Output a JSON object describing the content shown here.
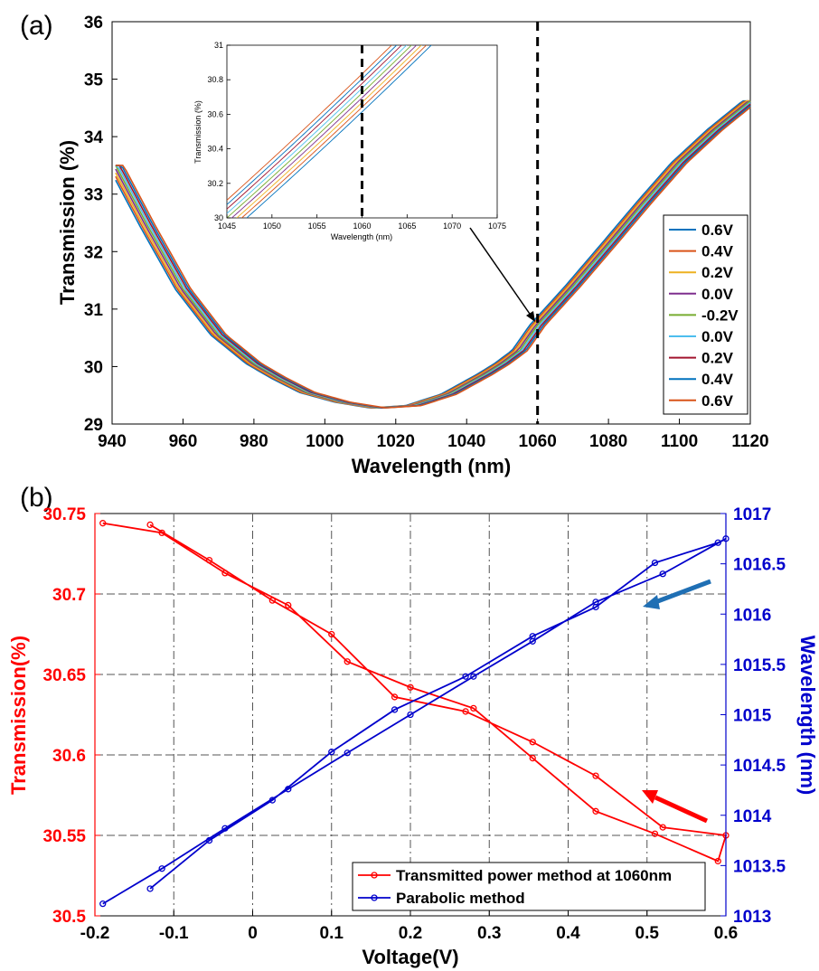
{
  "panels": {
    "a_label": "(a)",
    "b_label": "(b)"
  },
  "chart_data": [
    {
      "type": "line",
      "panel": "(a)",
      "xlabel": "Wavelength (nm)",
      "ylabel": "Transmission (%)",
      "xlim": [
        940,
        1120
      ],
      "ylim": [
        29,
        36
      ],
      "xticks": [
        940,
        960,
        980,
        1000,
        1020,
        1040,
        1060,
        1080,
        1100,
        1120
      ],
      "yticks": [
        29,
        30,
        31,
        32,
        33,
        34,
        35,
        36
      ],
      "marker_line_x": 1060,
      "curve_points": [
        [
          941,
          33.5
        ],
        [
          950,
          32.45
        ],
        [
          960,
          31.35
        ],
        [
          970,
          30.55
        ],
        [
          980,
          30.05
        ],
        [
          987,
          29.8
        ],
        [
          995,
          29.55
        ],
        [
          1005,
          29.38
        ],
        [
          1015,
          29.28
        ],
        [
          1025,
          29.32
        ],
        [
          1035,
          29.52
        ],
        [
          1045,
          29.86
        ],
        [
          1050,
          30.05
        ],
        [
          1055,
          30.28
        ],
        [
          1060,
          30.72
        ],
        [
          1070,
          31.4
        ],
        [
          1080,
          32.12
        ],
        [
          1090,
          32.85
        ],
        [
          1100,
          33.55
        ],
        [
          1110,
          34.12
        ],
        [
          1120,
          34.62
        ]
      ],
      "series": [
        {
          "name": "0.6V",
          "color": "#0072BD"
        },
        {
          "name": "0.4V",
          "color": "#D95319"
        },
        {
          "name": "0.2V",
          "color": "#EDB120"
        },
        {
          "name": "0.0V",
          "color": "#7E2F8E"
        },
        {
          "name": "-0.2V",
          "color": "#77AC30"
        },
        {
          "name": "0.0V",
          "color": "#4DBEEE"
        },
        {
          "name": "0.2V",
          "color": "#A2142F"
        },
        {
          "name": "0.4V",
          "color": "#0072BD"
        },
        {
          "name": "0.6V",
          "color": "#D95319"
        }
      ],
      "inset": {
        "xlabel": "Wavelength (nm)",
        "ylabel": "Transmission (%)",
        "xlim": [
          1045,
          1075
        ],
        "ylim": [
          30,
          31
        ],
        "xticks": [
          1045,
          1050,
          1055,
          1060,
          1065,
          1070,
          1075
        ],
        "yticks": [
          30,
          30.2,
          30.4,
          30.6,
          30.8,
          31
        ],
        "marker_line_x": 1060
      }
    },
    {
      "type": "line",
      "panel": "(b)",
      "xlabel": "Voltage(V)",
      "ylabel_left": "Transmission(%)",
      "ylabel_right": "Wavelength (nm)",
      "xlim": [
        -0.2,
        0.6
      ],
      "ylim_left": [
        30.5,
        30.75
      ],
      "ylim_right": [
        1013,
        1017
      ],
      "xticks": [
        -0.2,
        -0.1,
        0,
        0.1,
        0.2,
        0.3,
        0.4,
        0.5,
        0.6
      ],
      "xtick_labels": [
        "-0.2",
        "-0.1",
        "0",
        "0.1",
        "0.2",
        "0.3",
        "0.4",
        "0.5",
        "0.6"
      ],
      "yticks_left": [
        30.5,
        30.55,
        30.6,
        30.65,
        30.7,
        30.75
      ],
      "ytick_left_labels": [
        "30.5",
        "30.55",
        "30.6",
        "30.65",
        "30.7",
        "30.75"
      ],
      "yticks_right": [
        1013,
        1013.5,
        1014,
        1014.5,
        1015,
        1015.5,
        1016,
        1016.5,
        1017
      ],
      "ytick_right_labels": [
        "1013",
        "1013.5",
        "1014",
        "1014.5",
        "1015",
        "1015.5",
        "1016",
        "1016.5",
        "1017"
      ],
      "grid": true,
      "legend_position": "bottom-right",
      "series": [
        {
          "name": "Transmitted power method at 1060nm",
          "color": "#FF0000",
          "axis": "left",
          "x": [
            -0.19,
            -0.115,
            -0.035,
            0.045,
            0.12,
            0.2,
            0.28,
            0.355,
            0.435,
            0.51,
            0.59,
            0.6,
            0.52,
            0.435,
            0.355,
            0.27,
            0.18,
            0.1,
            0.025,
            -0.055,
            -0.13
          ],
          "y": [
            30.744,
            30.738,
            30.713,
            30.693,
            30.658,
            30.642,
            30.629,
            30.598,
            30.565,
            30.551,
            30.534,
            30.55,
            30.555,
            30.587,
            30.608,
            30.627,
            30.636,
            30.675,
            30.696,
            30.721,
            30.743
          ]
        },
        {
          "name": "Parabolic method",
          "color": "#0000CC",
          "axis": "right",
          "x": [
            -0.19,
            -0.115,
            -0.035,
            0.045,
            0.12,
            0.2,
            0.28,
            0.355,
            0.435,
            0.52,
            0.6,
            0.59,
            0.51,
            0.435,
            0.355,
            0.27,
            0.18,
            0.1,
            0.025,
            -0.055,
            -0.13
          ],
          "y": [
            1013.12,
            1013.47,
            1013.87,
            1014.26,
            1014.62,
            1015.0,
            1015.38,
            1015.73,
            1016.12,
            1016.4,
            1016.75,
            1016.71,
            1016.51,
            1016.07,
            1015.78,
            1015.38,
            1015.05,
            1014.63,
            1014.15,
            1013.75,
            1013.27
          ]
        }
      ]
    }
  ]
}
